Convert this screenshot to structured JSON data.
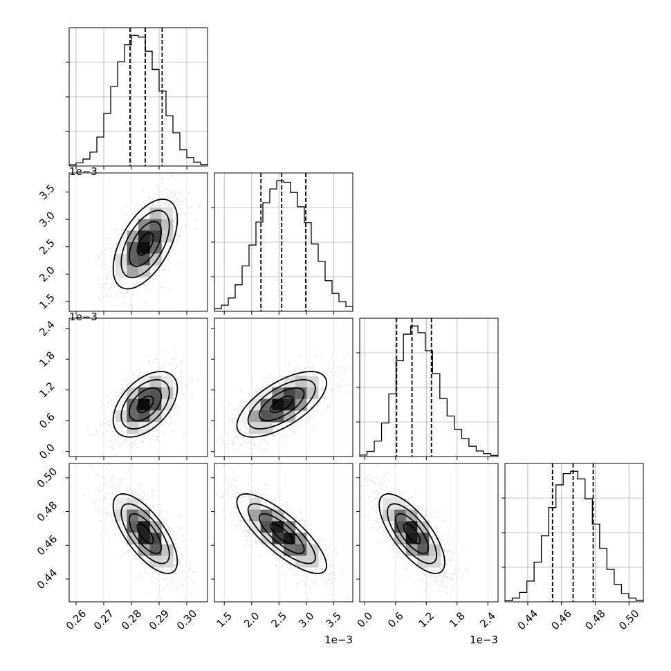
{
  "chart_data": {
    "type": "corner",
    "grid": true,
    "parameters": [
      {
        "range": [
          0.2575,
          0.3075
        ],
        "ticks": [
          "0.26",
          "0.27",
          "0.28",
          "0.29",
          "0.30"
        ],
        "tick_values": [
          0.26,
          0.27,
          0.28,
          0.29,
          0.3
        ],
        "offset_text": "",
        "quantiles": [
          0.2795,
          0.285,
          0.2911
        ],
        "median": 0.285,
        "sigma": 0.0058,
        "histogram_counts": [
          0.3,
          0.8,
          1.8,
          3.6,
          7.5,
          13.6,
          20.6,
          27.0,
          31.4,
          33.8,
          33.4,
          29.7,
          25.0,
          19.4,
          13.0,
          8.6,
          4.2,
          2.2,
          1.0,
          0.4
        ]
      },
      {
        "range": [
          1.32,
          3.85
        ],
        "ticks": [
          "1.5",
          "2.0",
          "2.5",
          "3.0",
          "3.5"
        ],
        "tick_values": [
          1.5,
          2.0,
          2.5,
          3.0,
          3.5
        ],
        "offset_text": "1e−3",
        "quantiles": [
          2.17,
          2.55,
          2.99
        ],
        "median": 2.55,
        "sigma": 0.41,
        "histogram_counts": [
          0.5,
          1.2,
          2.6,
          5.2,
          8.9,
          13.0,
          17.5,
          21.3,
          24.0,
          25.6,
          25.3,
          23.3,
          20.5,
          17.4,
          13.2,
          9.8,
          6.0,
          3.5,
          1.9,
          0.9
        ]
      },
      {
        "range": [
          -0.1,
          2.6
        ],
        "ticks": [
          "0.0",
          "0.6",
          "1.2",
          "1.8",
          "2.4"
        ],
        "tick_values": [
          0.0,
          0.6,
          1.2,
          1.8,
          2.4
        ],
        "offset_text": "1e−3",
        "quantiles": [
          0.62,
          0.92,
          1.3
        ],
        "median": 0.92,
        "sigma": 0.32,
        "histogram_counts": [
          0.4,
          1.4,
          4.2,
          9.1,
          17.0,
          26.0,
          33.2,
          35.4,
          33.6,
          28.7,
          22.5,
          15.7,
          11.0,
          7.4,
          4.9,
          2.8,
          1.5,
          0.8,
          0.3
        ]
      },
      {
        "range": [
          0.4265,
          0.5085
        ],
        "ticks": [
          "0.44",
          "0.46",
          "0.48",
          "0.50"
        ],
        "tick_values": [
          0.44,
          0.46,
          0.48,
          0.5
        ],
        "offset_text": "",
        "quantiles": [
          0.4547,
          0.4669,
          0.4788
        ],
        "median": 0.4669,
        "sigma": 0.0118,
        "histogram_counts": [
          0.3,
          1.0,
          2.5,
          5.5,
          10.5,
          17.5,
          25.0,
          31.0,
          34.0,
          34.6,
          32.6,
          27.3,
          20.6,
          14.2,
          8.6,
          4.6,
          2.2,
          1.0,
          0.4
        ]
      }
    ],
    "correlations": [
      {
        "row": 1,
        "col": 0,
        "rho": 0.55
      },
      {
        "row": 2,
        "col": 0,
        "rho": 0.48
      },
      {
        "row": 2,
        "col": 1,
        "rho": 0.65
      },
      {
        "row": 3,
        "col": 0,
        "rho": -0.7
      },
      {
        "row": 3,
        "col": 1,
        "rho": -0.8
      },
      {
        "row": 3,
        "col": 2,
        "rho": -0.72
      }
    ],
    "contour_sigma_levels": [
      0.5,
      1.0,
      1.5,
      2.0
    ],
    "colors": {
      "ink": "#000000",
      "grid": "#b0b0b0",
      "scatter": "#999999"
    }
  }
}
